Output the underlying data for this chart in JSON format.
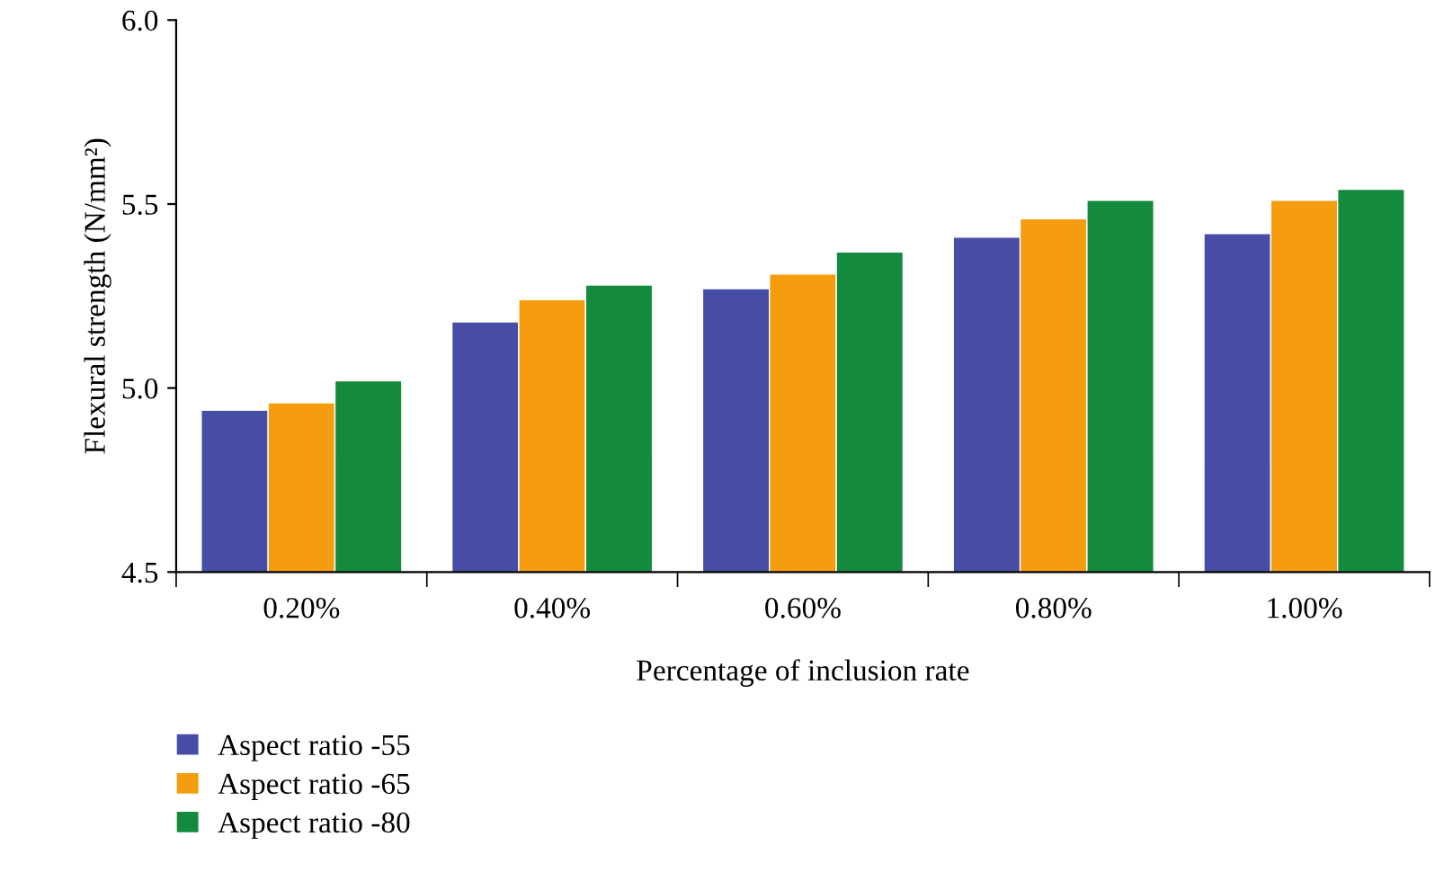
{
  "chart_data": {
    "type": "bar",
    "xlabel": "Percentage of inclusion rate",
    "ylabel": "Flexural strength (N/mm²)",
    "categories": [
      "0.20%",
      "0.40%",
      "0.60%",
      "0.80%",
      "1.00%"
    ],
    "series": [
      {
        "name": "Aspect ratio -55",
        "color": "#474ca5",
        "values": [
          4.94,
          5.18,
          5.27,
          5.41,
          5.42
        ]
      },
      {
        "name": "Aspect ratio -65",
        "color": "#f59d0e",
        "values": [
          4.96,
          5.24,
          5.31,
          5.46,
          5.51
        ]
      },
      {
        "name": "Aspect ratio -80",
        "color": "#138a3d",
        "values": [
          5.02,
          5.28,
          5.37,
          5.51,
          5.54
        ]
      }
    ],
    "ylim": [
      4.5,
      6.0
    ],
    "yticks": [
      {
        "value": 4.5,
        "label": "4.5"
      },
      {
        "value": 5.0,
        "label": "5.0"
      },
      {
        "value": 5.5,
        "label": "5.5"
      },
      {
        "value": 6.0,
        "label": "6.0"
      }
    ],
    "grid": false,
    "legend": "bottom left"
  }
}
